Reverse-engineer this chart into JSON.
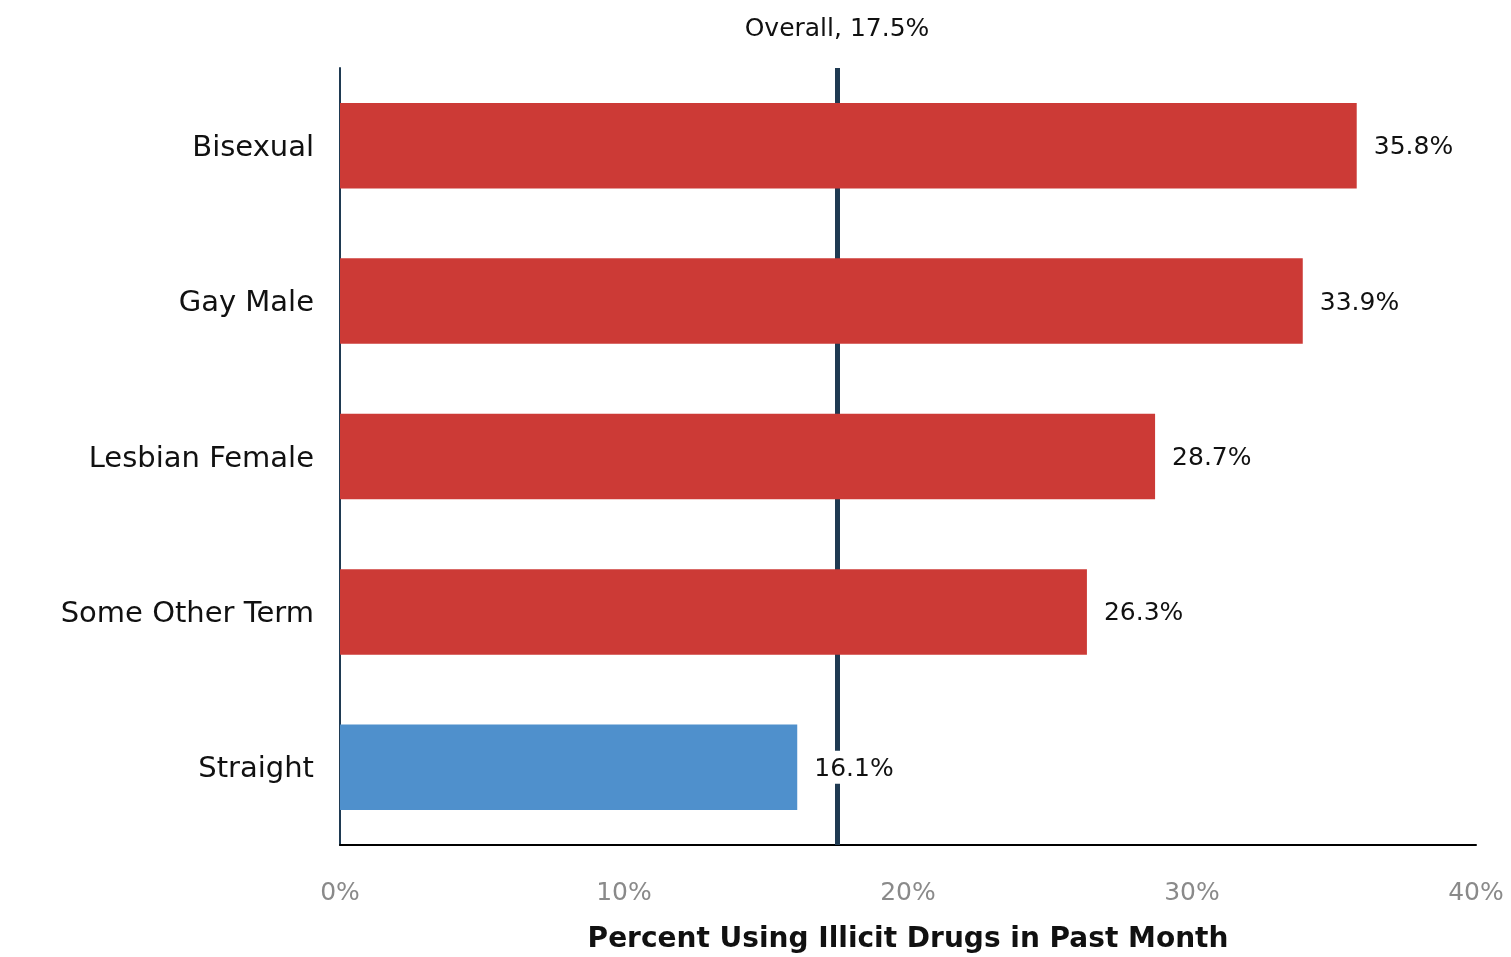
{
  "chart_data": {
    "type": "bar",
    "orientation": "horizontal",
    "categories": [
      "Bisexual",
      "Gay Male",
      "Lesbian Female",
      "Some Other Term",
      "Straight"
    ],
    "values": [
      35.8,
      33.9,
      28.7,
      26.3,
      16.1
    ],
    "colors": [
      "#cc3a36",
      "#cc3a36",
      "#cc3a36",
      "#cc3a36",
      "#4f90cc"
    ],
    "value_labels": [
      "35.8%",
      "33.9%",
      "28.7%",
      "26.3%",
      "16.1%"
    ],
    "xlabel": "Percent Using Illicit Drugs in Past Month",
    "xlim": [
      0,
      40
    ],
    "xticks": [
      {
        "value": 0,
        "label": "0%"
      },
      {
        "value": 10,
        "label": "10%"
      },
      {
        "value": 20,
        "label": "20%"
      },
      {
        "value": 30,
        "label": "30%"
      },
      {
        "value": 40,
        "label": "40%"
      }
    ],
    "ref_lines": [
      {
        "axis": "x",
        "value": 17.5,
        "label": "Overall, 17.5%",
        "color": "#1f3a52",
        "line_style": "solid"
      }
    ]
  }
}
